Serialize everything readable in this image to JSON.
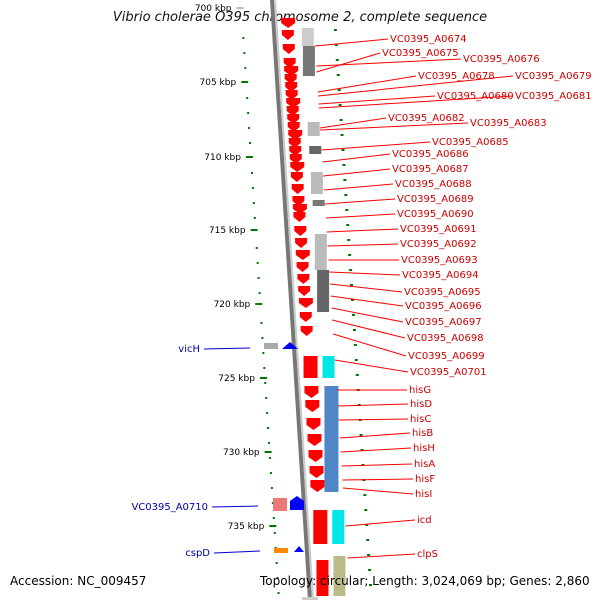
{
  "title": "Vibrio cholerae O395 chromosome 2, complete sequence",
  "footer": {
    "accession": "Accession: NC_009457",
    "summary": "Topology: circular; Length: 3,024,069 bp; Genes: 2,860"
  },
  "colors": {
    "gene": "#ff0000",
    "left_gene": "#0000cc",
    "scale": "#007700",
    "backbone": "#888888",
    "highlight": "#00e5e5",
    "pathway": "#4f86c6",
    "orange": "#ff8800"
  },
  "scale_ticks": [
    {
      "label": "700 kbp",
      "faded": true
    },
    {
      "label": "705 kbp"
    },
    {
      "label": "710 kbp"
    },
    {
      "label": "715 kbp"
    },
    {
      "label": "720 kbp"
    },
    {
      "label": "725 kbp"
    },
    {
      "label": "730 kbp"
    },
    {
      "label": "735 kbp"
    }
  ],
  "right_genes": [
    "VC0395_A0674",
    "VC0395_A0675",
    "VC0395_A0676",
    "VC0395_A0678",
    "VC0395_A0679",
    "VC0395_A0680",
    "VC0395_A0681",
    "VC0395_A0682",
    "VC0395_A0683",
    "VC0395_A0685",
    "VC0395_A0686",
    "VC0395_A0687",
    "VC0395_A0688",
    "VC0395_A0689",
    "VC0395_A0690",
    "VC0395_A0691",
    "VC0395_A0692",
    "VC0395_A0693",
    "VC0395_A0694",
    "VC0395_A0695",
    "VC0395_A0696",
    "VC0395_A0697",
    "VC0395_A0698",
    "VC0395_A0699",
    "VC0395_A0701",
    "hisG",
    "hisD",
    "hisC",
    "hisB",
    "hisH",
    "hisA",
    "hisF",
    "hisI",
    "icd",
    "clpS"
  ],
  "left_genes": [
    "vicH",
    "VC0395_A0710",
    "cspD"
  ]
}
